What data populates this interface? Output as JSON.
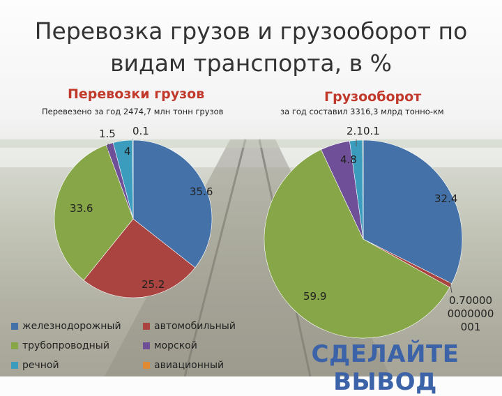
{
  "title_line1": "Перевозка грузов и грузооборот по",
  "title_line2": "видам транспорта, в %",
  "cta": "СДЕЛАЙТЕ ВЫВОД",
  "colors": {
    "железнодорожный": "#4472a8",
    "автомобильный": "#a94440",
    "трубопроводный": "#86a648",
    "морской": "#6f4f97",
    "речной": "#3b9cbd",
    "авиационный": "#e08b34"
  },
  "legend": [
    "железнодорожный",
    "автомобильный",
    "трубопроводный",
    "морской",
    "речной",
    "авиационный"
  ],
  "chart_data": [
    {
      "type": "pie",
      "title": "Перевозки грузов",
      "subtitle": "Перевезено за год 2474,7 млн тонн грузов",
      "categories": [
        "железнодорожный",
        "автомобильный",
        "трубопроводный",
        "морской",
        "речной",
        "авиационный"
      ],
      "values": [
        35.6,
        25.2,
        33.6,
        1.5,
        4,
        0.1
      ],
      "data_labels": [
        "35.6",
        "25.2",
        "33.6",
        "1.5",
        "4",
        "0.1"
      ]
    },
    {
      "type": "pie",
      "title": "Грузооборот",
      "subtitle": "за год составил 3316,3 млрд тонно-км",
      "categories": [
        "железнодорожный",
        "автомобильный",
        "трубопроводный",
        "морской",
        "речной",
        "авиационный"
      ],
      "values": [
        32.4,
        0.7000000000000001,
        59.9,
        4.8,
        2.1,
        0.1
      ],
      "data_labels": [
        "32.4",
        "0.70000 0000000 001",
        "59.9",
        "4.8",
        "2.1",
        "0.1"
      ]
    }
  ]
}
